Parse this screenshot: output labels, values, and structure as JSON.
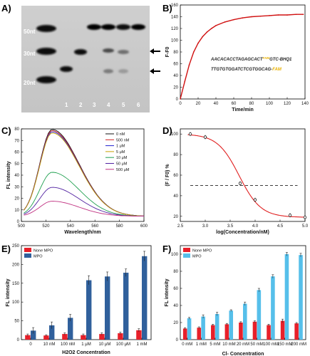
{
  "panels": {
    "a": "A)",
    "b": "B)",
    "c": "C)",
    "d": "D)",
    "e": "E)",
    "f": "F)"
  },
  "gel": {
    "markers": [
      "50nt",
      "30nt",
      "20nt"
    ],
    "lanes": [
      "1",
      "2",
      "3",
      "4",
      "5",
      "6"
    ]
  },
  "chart_data": [
    {
      "type": "line",
      "id": "B",
      "ylabel": "F-F0",
      "xlabel": "Time/min",
      "xlim": [
        0,
        140
      ],
      "ylim": [
        0,
        160
      ],
      "xticks": [
        0,
        20,
        40,
        60,
        80,
        100,
        120,
        140
      ],
      "yticks": [
        0,
        20,
        40,
        60,
        80,
        100,
        120,
        140,
        160
      ],
      "series": [
        {
          "x": [
            0,
            5,
            10,
            15,
            20,
            25,
            30,
            35,
            40,
            50,
            60,
            70,
            80,
            90,
            100,
            110,
            120,
            130,
            138
          ],
          "values": [
            0,
            30,
            58,
            80,
            95,
            106,
            114,
            120,
            125,
            131,
            135,
            138,
            140,
            141,
            142,
            143,
            143,
            144,
            144
          ]
        }
      ],
      "annotations": {
        "seq1_a": "AACACACCTAGAGCACT",
        "seq1_fam": "FAM",
        "seq1_b": "GTC-BHQ1",
        "seq2_a": "TTGTGTGGATCTCGTGGCAG-",
        "seq2_fam": "FAM"
      },
      "color": "#d01010"
    },
    {
      "type": "line",
      "id": "C",
      "ylabel": "FL intensity",
      "xlabel": "Wavelength/nm",
      "xlim": [
        500,
        600
      ],
      "ylim": [
        0,
        80
      ],
      "xticks": [
        500,
        520,
        540,
        560,
        580,
        600
      ],
      "yticks": [
        0,
        10,
        20,
        30,
        40,
        50,
        60,
        70,
        80
      ],
      "legend_position": "top-right",
      "series": [
        {
          "name": "0 nM",
          "color": "#111111",
          "peak": 75
        },
        {
          "name": "500 nM",
          "color": "#d02020",
          "peak": 74
        },
        {
          "name": "1 μM",
          "color": "#2020d0",
          "peak": 73
        },
        {
          "name": "5 μM",
          "color": "#c8a000",
          "peak": 72
        },
        {
          "name": "10 μM",
          "color": "#20a050",
          "peak": 38
        },
        {
          "name": "50 μM",
          "color": "#5020a0",
          "peak": 25
        },
        {
          "name": "500 μM",
          "color": "#c03080",
          "peak": 13
        }
      ]
    },
    {
      "type": "scatter",
      "id": "D",
      "ylabel": "(F / F0) %",
      "xlabel": "log(Concentration/nM)",
      "xlim": [
        2.5,
        5.0
      ],
      "ylim": [
        15,
        105
      ],
      "xticks": [
        2.5,
        3.0,
        3.5,
        4.0,
        4.5,
        5.0
      ],
      "yticks": [
        20,
        40,
        60,
        80,
        100
      ],
      "x": [
        2.7,
        3.0,
        3.7,
        4.0,
        4.7,
        5.0
      ],
      "values": [
        100,
        97,
        52,
        36,
        21,
        19
      ],
      "threshold": 50
    },
    {
      "type": "bar",
      "id": "E",
      "ylabel": "FL intensity",
      "xlabel": "H2O2 Concentration",
      "ylim": [
        0,
        250
      ],
      "yticks": [
        0,
        50,
        100,
        150,
        200,
        250
      ],
      "legend_position": "top-left",
      "categories": [
        "0",
        "10 nM",
        "100 nM",
        "1 μM",
        "10 μM",
        "100 μM",
        "1 mM"
      ],
      "series": [
        {
          "name": "None MPO",
          "color": "#e8202a",
          "values": [
            12,
            11,
            15,
            12,
            15,
            17,
            25
          ],
          "errors": [
            3,
            2,
            3,
            3,
            3,
            3,
            4
          ]
        },
        {
          "name": "MPO",
          "color": "#30609c",
          "values": [
            24,
            38,
            58,
            158,
            168,
            178,
            222
          ],
          "errors": [
            8,
            9,
            9,
            12,
            12,
            10,
            13
          ]
        }
      ]
    },
    {
      "type": "bar",
      "id": "F",
      "ylabel": "FL intensity",
      "xlabel": "Cl- Concentration",
      "ylim": [
        0,
        110
      ],
      "yticks": [
        0,
        20,
        40,
        60,
        80,
        100
      ],
      "legend_position": "top-left",
      "categories": [
        "0 mM",
        "1 mM",
        "5 mM",
        "10 mM",
        "20 mM",
        "50 mM",
        "100 mM",
        "150 mM",
        "200 mM"
      ],
      "series": [
        {
          "name": "None MPO",
          "color": "#e8202a",
          "values": [
            13,
            14,
            17,
            18,
            20,
            21,
            17,
            22,
            19
          ],
          "errors": [
            1,
            1,
            1,
            1,
            1,
            1,
            1,
            2,
            1
          ]
        },
        {
          "name": "MPO",
          "color": "#56bfea",
          "values": [
            25,
            27,
            30,
            34,
            42,
            58,
            74,
            100,
            99
          ],
          "errors": [
            1,
            2,
            2,
            1,
            2,
            2,
            2,
            2,
            2
          ]
        }
      ]
    }
  ]
}
